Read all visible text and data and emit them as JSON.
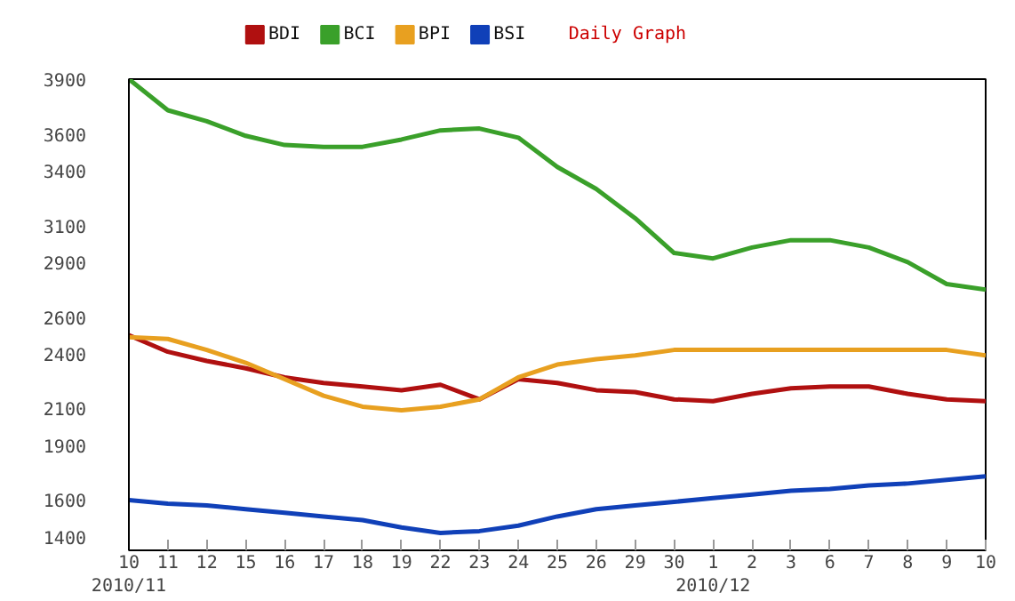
{
  "chart_data": {
    "type": "line",
    "title": "Daily Graph",
    "categories": [
      "10\n2010/11",
      "11",
      "12",
      "15",
      "16",
      "17",
      "18",
      "19",
      "22",
      "23",
      "24",
      "25",
      "26",
      "29",
      "30",
      "1\n2010/12",
      "2",
      "3",
      "6",
      "7",
      "8",
      "9",
      "10"
    ],
    "series": [
      {
        "name": "BDI",
        "color": "#b01010",
        "values": [
          2500,
          2410,
          2360,
          2320,
          2270,
          2240,
          2220,
          2200,
          2230,
          2150,
          2260,
          2240,
          2200,
          2190,
          2150,
          2140,
          2180,
          2210,
          2220,
          2220,
          2180,
          2150,
          2140
        ]
      },
      {
        "name": "BCI",
        "color": "#3aa02a",
        "values": [
          3900,
          3730,
          3670,
          3590,
          3540,
          3530,
          3530,
          3570,
          3620,
          3630,
          3580,
          3420,
          3300,
          3140,
          2950,
          2920,
          2980,
          3020,
          3020,
          2980,
          2900,
          2780,
          2750
        ]
      },
      {
        "name": "BPI",
        "color": "#e8a020",
        "values": [
          2490,
          2480,
          2420,
          2350,
          2260,
          2170,
          2110,
          2090,
          2110,
          2150,
          2270,
          2340,
          2370,
          2390,
          2420,
          2420,
          2420,
          2420,
          2420,
          2420,
          2420,
          2420,
          2390
        ]
      },
      {
        "name": "BSI",
        "color": "#1040b8",
        "values": [
          1600,
          1580,
          1570,
          1550,
          1530,
          1510,
          1490,
          1450,
          1420,
          1430,
          1460,
          1510,
          1550,
          1570,
          1590,
          1610,
          1630,
          1650,
          1660,
          1680,
          1690,
          1710,
          1730
        ]
      }
    ],
    "ylim": [
      1325,
      3900
    ],
    "yticks": [
      1400,
      1600,
      1900,
      2100,
      2400,
      2600,
      2900,
      3100,
      3400,
      3600,
      3900
    ],
    "grid": false,
    "legend": "top",
    "marker": "none",
    "line_style": "solid"
  }
}
